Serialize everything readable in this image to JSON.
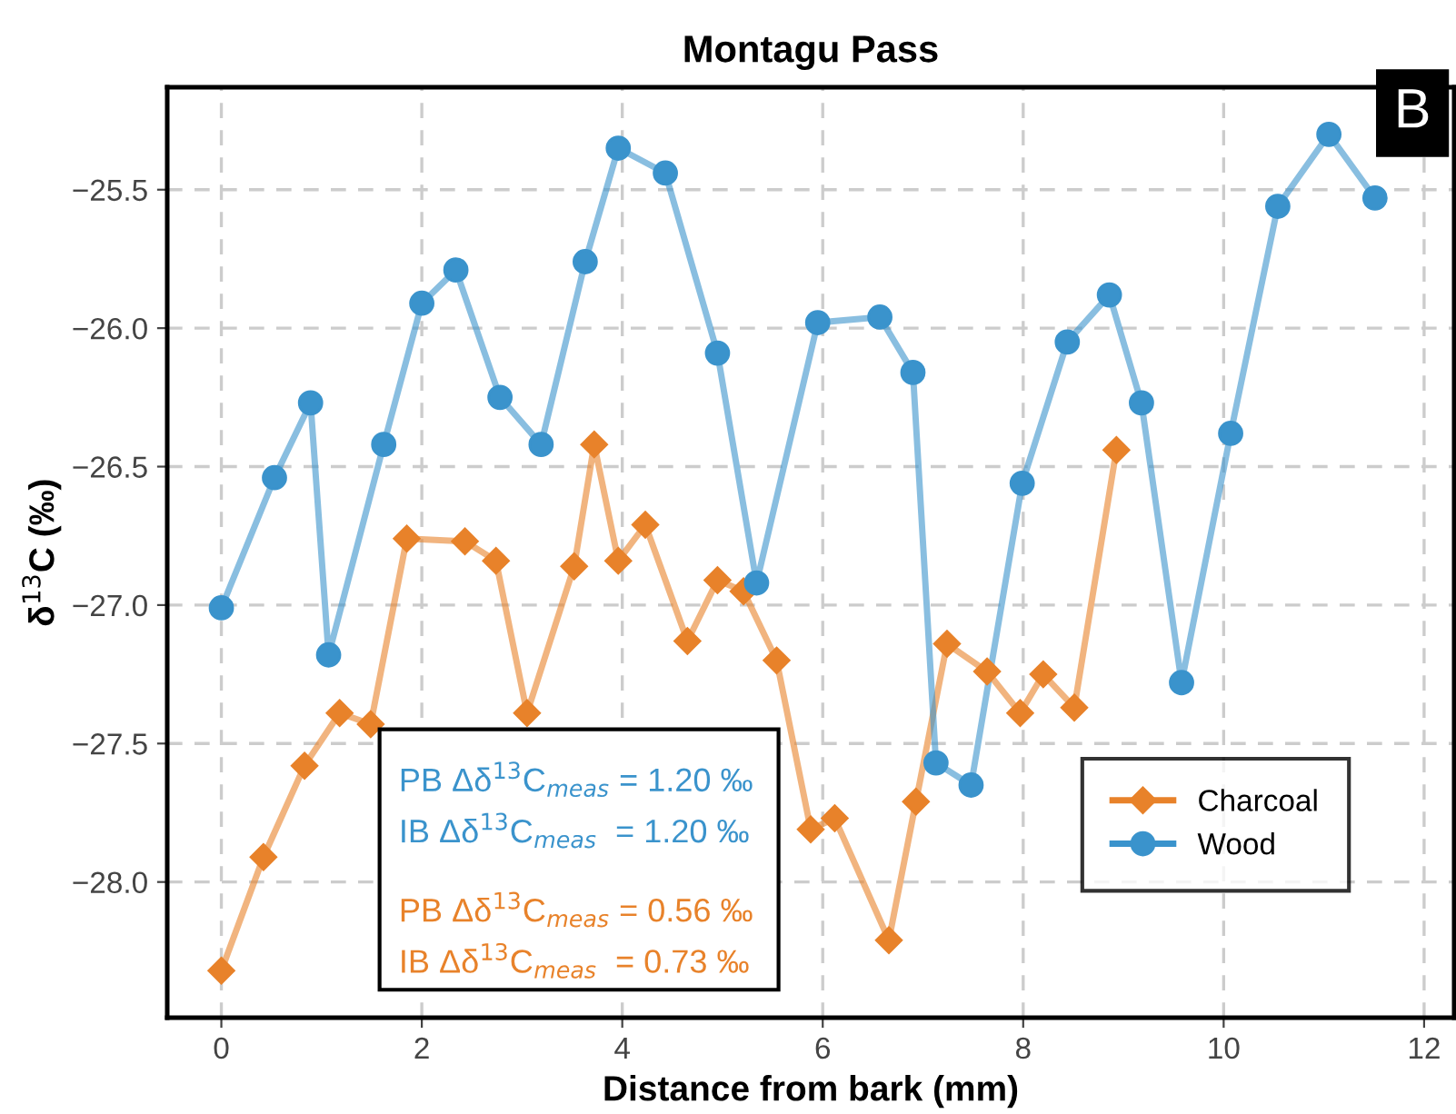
{
  "chart_data": {
    "type": "line",
    "title": "Montagu Pass",
    "xlabel": "Distance from bark (mm)",
    "ylabel": "δ$^{13}$C (‰)",
    "xlim": [
      -0.54,
      12.3
    ],
    "xticks": [
      0,
      2,
      4,
      6,
      8,
      10,
      12
    ],
    "ylim": [
      -28.49,
      -25.13
    ],
    "yticks": [
      {
        "value": -25.5,
        "label": "−25.5"
      },
      {
        "value": -26.0,
        "label": "−26.0"
      },
      {
        "value": -26.5,
        "label": "−26.5"
      },
      {
        "value": -27.0,
        "label": "−27.0"
      },
      {
        "value": -27.5,
        "label": "−27.5"
      },
      {
        "value": -28.0,
        "label": "−28.0"
      }
    ],
    "grid": true,
    "legend": "bottom right",
    "line_style": "solid",
    "series": [
      {
        "name": "Charcoal",
        "color": "#e8822a",
        "marker": "diamond",
        "x": [
          0,
          0.42,
          0.83,
          1.18,
          1.49,
          1.85,
          2.43,
          2.74,
          3.05,
          3.52,
          3.72,
          3.96,
          4.23,
          4.65,
          4.95,
          5.21,
          5.54,
          5.88,
          6.12,
          6.66,
          6.93,
          7.24,
          7.64,
          7.97,
          8.2,
          8.51,
          8.93
        ],
        "values": [
          -28.32,
          -27.91,
          -27.58,
          -27.39,
          -27.43,
          -26.76,
          -26.77,
          -26.84,
          -27.39,
          -26.86,
          -26.42,
          -26.84,
          -26.71,
          -27.13,
          -26.91,
          -26.95,
          -27.2,
          -27.81,
          -27.77,
          -28.21,
          -27.71,
          -27.14,
          -27.24,
          -27.39,
          -27.25,
          -27.37,
          -26.44
        ]
      },
      {
        "name": "Wood",
        "color": "#3a93cc",
        "marker": "circle",
        "x": [
          0,
          0.53,
          0.89,
          1.07,
          1.62,
          2.0,
          2.34,
          2.78,
          3.19,
          3.63,
          3.96,
          4.43,
          4.95,
          5.34,
          5.95,
          6.57,
          6.9,
          7.13,
          7.48,
          7.99,
          8.44,
          8.86,
          9.18,
          9.58,
          10.07,
          10.54,
          11.05,
          11.51
        ],
        "values": [
          -27.01,
          -26.54,
          -26.27,
          -27.18,
          -26.42,
          -25.91,
          -25.79,
          -26.25,
          -26.42,
          -25.76,
          -25.35,
          -25.44,
          -26.09,
          -26.92,
          -25.98,
          -25.96,
          -26.16,
          -27.57,
          -27.65,
          -26.56,
          -26.05,
          -25.88,
          -26.27,
          -27.28,
          -26.38,
          -25.56,
          -25.3,
          -25.53
        ]
      }
    ],
    "annotations": [
      "B",
      "PB Δδ$^{13}$C$_{meas}$ = 1.20 ‰",
      "IB Δδ$^{13}$C$_{meas}$  = 1.20 ‰",
      "PB Δδ$^{13}$C$_{meas}$ = 0.56 ‰",
      "IB Δδ$^{13}$C$_{meas}$  = 0.73 ‰"
    ]
  }
}
